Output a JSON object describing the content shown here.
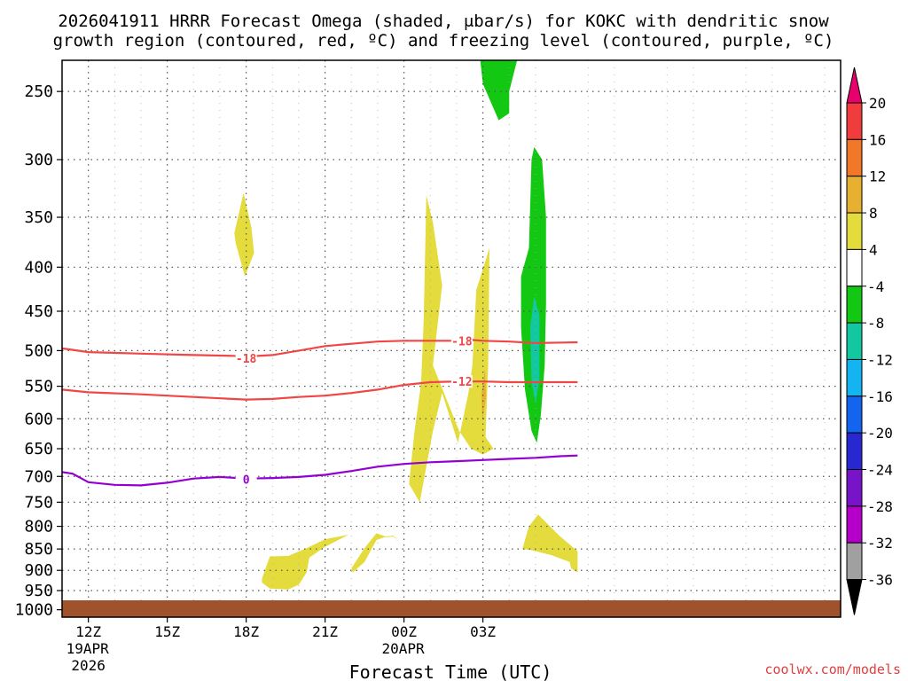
{
  "chart_data": {
    "type": "heatmap",
    "title_line1": "2026041911 HRRR Forecast Omega (shaded, μbar/s) for KOKC with dendritic snow",
    "title_line2": "growth region (contoured, red, ºC) and freezing level (contoured, purple, ºC)",
    "xlabel": "Forecast Time (UTC)",
    "ylabel": "",
    "credit": "coolwx.com/models",
    "x_range_hours_since_12Z": [
      -1,
      28.6
    ],
    "y_range_mb": [
      230,
      1020
    ],
    "x_ticks": [
      {
        "hour": 0,
        "label": "12Z",
        "sub1": "19APR",
        "sub2": "2026"
      },
      {
        "hour": 3,
        "label": "15Z",
        "sub1": "",
        "sub2": ""
      },
      {
        "hour": 6,
        "label": "18Z",
        "sub1": "",
        "sub2": ""
      },
      {
        "hour": 9,
        "label": "21Z",
        "sub1": "",
        "sub2": ""
      },
      {
        "hour": 12,
        "label": "00Z",
        "sub1": "20APR",
        "sub2": ""
      },
      {
        "hour": 15,
        "label": "03Z",
        "sub1": "",
        "sub2": ""
      }
    ],
    "y_ticks": [
      250,
      300,
      350,
      400,
      450,
      500,
      550,
      600,
      650,
      700,
      750,
      800,
      850,
      900,
      950,
      1000
    ],
    "grid": true,
    "surface_pressure_mb": 975,
    "surface_color": "#a0522d",
    "colorbar": {
      "levels": [
        "20",
        "16",
        "12",
        "8",
        "4",
        "-4",
        "-8",
        "-12",
        "-16",
        "-20",
        "-24",
        "-28",
        "-32",
        "-36"
      ],
      "colors": [
        "#e8006c",
        "#f03c3c",
        "#f07828",
        "#e8b030",
        "#e4dc3c",
        "#ffffff",
        "#12c812",
        "#12c8a0",
        "#14b4f0",
        "#1464f0",
        "#2828d2",
        "#7814c8",
        "#b400c8",
        "#a0a0a0",
        "#000000"
      ]
    },
    "contours": [
      {
        "name": "dendritic-top",
        "label": "-18",
        "color": "#f04646",
        "points": [
          [
            -1,
            497
          ],
          [
            0,
            502
          ],
          [
            2,
            504
          ],
          [
            4,
            506
          ],
          [
            5.5,
            507
          ],
          [
            6,
            508
          ],
          [
            7,
            506
          ],
          [
            8,
            500
          ],
          [
            9,
            494
          ],
          [
            10,
            491
          ],
          [
            11,
            488
          ],
          [
            12,
            487
          ],
          [
            13,
            487
          ],
          [
            14,
            487
          ],
          [
            14.6,
            486
          ],
          [
            15,
            487
          ],
          [
            16,
            488
          ],
          [
            17,
            490
          ],
          [
            18.6,
            489
          ]
        ],
        "labels_at": [
          [
            6,
            510
          ],
          [
            14.2,
            487
          ]
        ]
      },
      {
        "name": "dendritic-bottom",
        "label": "-12",
        "color": "#f04646",
        "points": [
          [
            -1,
            555
          ],
          [
            0,
            559
          ],
          [
            2,
            562
          ],
          [
            4,
            566
          ],
          [
            5,
            568
          ],
          [
            6,
            570
          ],
          [
            7,
            569
          ],
          [
            8,
            566
          ],
          [
            9,
            564
          ],
          [
            10,
            560
          ],
          [
            11,
            555
          ],
          [
            12,
            548
          ],
          [
            13,
            544
          ],
          [
            14,
            543
          ],
          [
            15,
            543
          ],
          [
            16,
            544
          ],
          [
            17,
            544
          ],
          [
            18.6,
            544
          ]
        ],
        "labels_at": [
          [
            14.2,
            543
          ]
        ]
      },
      {
        "name": "freezing-level",
        "label": "0",
        "color": "#9400d3",
        "points": [
          [
            -1,
            692
          ],
          [
            -0.6,
            695
          ],
          [
            0,
            711
          ],
          [
            1,
            716
          ],
          [
            2,
            717
          ],
          [
            3,
            712
          ],
          [
            4,
            704
          ],
          [
            5,
            701
          ],
          [
            6,
            704
          ],
          [
            7,
            703
          ],
          [
            8,
            701
          ],
          [
            9,
            697
          ],
          [
            10,
            690
          ],
          [
            11,
            682
          ],
          [
            12,
            677
          ],
          [
            13,
            674
          ],
          [
            14,
            672
          ],
          [
            15,
            670
          ],
          [
            16,
            668
          ],
          [
            17,
            666
          ],
          [
            18,
            663
          ],
          [
            18.6,
            662
          ]
        ],
        "labels_at": [
          [
            6,
            705
          ]
        ]
      }
    ],
    "omega_regions": [
      {
        "level": "4",
        "color": "#e4dc3c",
        "points": [
          [
            5.55,
            365
          ],
          [
            5.9,
            328
          ],
          [
            6.2,
            360
          ],
          [
            6.3,
            385
          ],
          [
            5.95,
            410
          ],
          [
            5.6,
            375
          ]
        ]
      },
      {
        "level": "4",
        "color": "#e4dc3c",
        "points": [
          [
            12.2,
            710
          ],
          [
            12.4,
            620
          ],
          [
            12.65,
            545
          ],
          [
            12.75,
            460
          ],
          [
            12.85,
            330
          ],
          [
            13.1,
            355
          ],
          [
            13.45,
            420
          ],
          [
            13.1,
            520
          ],
          [
            14.1,
            620
          ],
          [
            14.55,
            650
          ],
          [
            15,
            660
          ],
          [
            15.4,
            650
          ],
          [
            15.1,
            630
          ],
          [
            15.2,
            520
          ],
          [
            15.25,
            380
          ],
          [
            14.75,
            425
          ],
          [
            14.6,
            520
          ],
          [
            14.45,
            560
          ],
          [
            14.05,
            640
          ],
          [
            13.45,
            560
          ],
          [
            13.1,
            620
          ],
          [
            12.6,
            750
          ],
          [
            12.2,
            715
          ]
        ]
      },
      {
        "level": "8",
        "color": "#e8b030",
        "points": [
          [
            14.95,
            560
          ],
          [
            15.08,
            525
          ],
          [
            15.12,
            565
          ],
          [
            14.98,
            605
          ]
        ]
      },
      {
        "level": "4",
        "color": "#e4dc3c",
        "points": [
          [
            10.0,
            895
          ],
          [
            10.5,
            848
          ],
          [
            10.95,
            815
          ],
          [
            11.3,
            822
          ],
          [
            11.6,
            820
          ],
          [
            11.85,
            835
          ],
          [
            11.6,
            822
          ],
          [
            11.25,
            824
          ],
          [
            10.95,
            830
          ],
          [
            10.5,
            880
          ],
          [
            10.05,
            905
          ]
        ]
      },
      {
        "level": "4",
        "color": "#e4dc3c",
        "points": [
          [
            6.6,
            920
          ],
          [
            6.9,
            867
          ],
          [
            7.6,
            866
          ],
          [
            8.3,
            848
          ],
          [
            9.0,
            828
          ],
          [
            9.9,
            818
          ],
          [
            9.0,
            845
          ],
          [
            8.4,
            870
          ],
          [
            8.3,
            905
          ],
          [
            8.0,
            935
          ],
          [
            7.6,
            947
          ],
          [
            6.9,
            945
          ],
          [
            6.6,
            930
          ]
        ]
      },
      {
        "level": "-4",
        "color": "#12c812",
        "points": [
          [
            15.2,
            228
          ],
          [
            16.3,
            228
          ],
          [
            16.0,
            250
          ],
          [
            16.0,
            265
          ],
          [
            15.6,
            270
          ],
          [
            15.0,
            245
          ],
          [
            14.9,
            228
          ]
        ]
      },
      {
        "level": "-4",
        "color": "#12c812",
        "points": [
          [
            16.95,
            290
          ],
          [
            17.25,
            300
          ],
          [
            17.4,
            350
          ],
          [
            17.4,
            440
          ],
          [
            17.35,
            520
          ],
          [
            17.2,
            595
          ],
          [
            17.05,
            640
          ],
          [
            16.85,
            620
          ],
          [
            16.6,
            555
          ],
          [
            16.45,
            470
          ],
          [
            16.45,
            410
          ],
          [
            16.75,
            380
          ],
          [
            16.85,
            300
          ]
        ]
      },
      {
        "level": "-8",
        "color": "#12c8a0",
        "points": [
          [
            16.95,
            432
          ],
          [
            17.15,
            455
          ],
          [
            17.15,
            540
          ],
          [
            17.0,
            575
          ],
          [
            16.85,
            545
          ],
          [
            16.8,
            470
          ]
        ]
      },
      {
        "level": "4",
        "color": "#e4dc3c",
        "points": [
          [
            16.5,
            850
          ],
          [
            16.75,
            800
          ],
          [
            17.1,
            775
          ],
          [
            17.9,
            820
          ],
          [
            18.6,
            855
          ],
          [
            18.6,
            905
          ],
          [
            18.35,
            895
          ],
          [
            18.3,
            880
          ],
          [
            17.6,
            864
          ],
          [
            16.8,
            852
          ]
        ]
      }
    ]
  }
}
